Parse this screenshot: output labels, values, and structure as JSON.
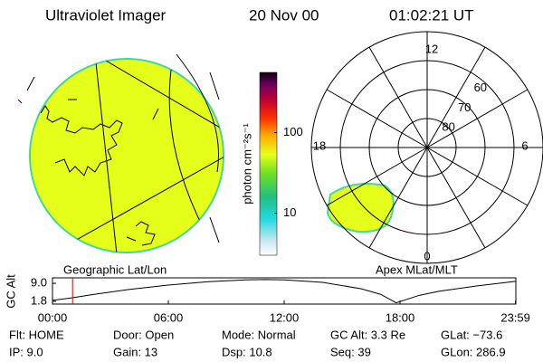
{
  "header": {
    "title": "Ultraviolet Imager",
    "date": "20 Nov 00",
    "time": "01:02:21 UT"
  },
  "colorbar": {
    "label": "photon cm⁻²s⁻¹",
    "clim": [
      3,
      560
    ],
    "log": true,
    "ticks": [
      100,
      10
    ]
  },
  "panels": {
    "left_caption": "Geographic Lat/Lon",
    "right_caption": "Apex MLat/MLT"
  },
  "polar": {
    "rlim": [
      90,
      50
    ],
    "lat_rings": [
      60,
      70,
      80
    ],
    "mlt_labels": [
      "12",
      "18",
      "6",
      "0"
    ]
  },
  "altitude": {
    "ylabel": "GC Alt",
    "xlim": [
      0,
      24
    ],
    "ylim": [
      0.7,
      11.2
    ],
    "yticks": [
      {
        "value": 9,
        "label": "9.0"
      },
      1.8
    ],
    "xticks": [
      {
        "value": 0,
        "label": "00:00"
      },
      {
        "value": 6,
        "label": "06:00"
      },
      {
        "value": 12,
        "label": "12:00"
      },
      {
        "value": 18,
        "label": "18:00"
      },
      {
        "value": 23.983,
        "label": "23:59"
      }
    ],
    "x": [
      0,
      1,
      2,
      4,
      6,
      8,
      10,
      11,
      12,
      14,
      16,
      17,
      17.8,
      19,
      20,
      22,
      23.98
    ],
    "values": [
      2.2,
      3.2,
      4.4,
      6.6,
      8.3,
      9.6,
      10.4,
      10.5,
      10.4,
      9.4,
      6.8,
      4.6,
      1.2,
      4.2,
      5.8,
      8.0,
      9.8
    ],
    "marker_x": 1.04
  },
  "footer": {
    "rows": [
      [
        "Flt: HOME",
        "Door: Open",
        "Mode: Normal",
        "GC Alt: 3.3 Re",
        "GLat: −73.6"
      ],
      [
        "IP: 9.0",
        "Gain: 13",
        "Dsp: 10.8",
        "Seq: 39",
        "GLon: 286.9"
      ]
    ]
  }
}
